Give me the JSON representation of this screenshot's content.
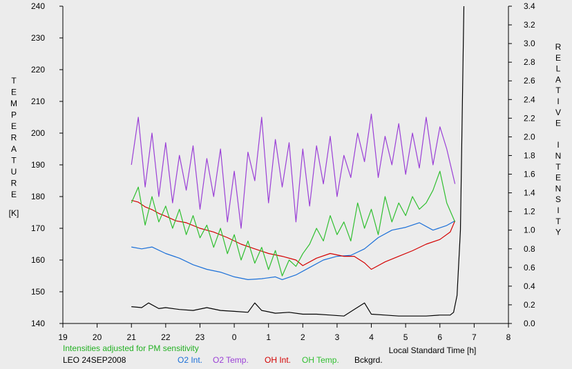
{
  "colors": {
    "background": "#ececec",
    "axis": "#000000",
    "o2_int": "#1a6fd8",
    "o2_temp": "#9a3fd6",
    "oh_int": "#d40000",
    "oh_temp": "#2fbf2f",
    "bckgrd": "#000000",
    "note": "#22b022"
  },
  "chart_data": {
    "type": "line",
    "title": "",
    "xlabel": "Local Standard Time [h]",
    "ylabel_left": "TEMPERATURE",
    "ylabel_left_unit": "[K]",
    "ylabel_right": "RELATIVE INTENSITY",
    "xlim": [
      19,
      32
    ],
    "x_ticks": [
      "19",
      "20",
      "21",
      "22",
      "23",
      "0",
      "1",
      "2",
      "3",
      "4",
      "5",
      "6",
      "7",
      "8"
    ],
    "ylim_left": [
      140,
      240
    ],
    "y_left_ticks": [
      "140",
      "150",
      "160",
      "170",
      "180",
      "190",
      "200",
      "210",
      "220",
      "230",
      "240"
    ],
    "ylim_right": [
      0.0,
      3.4
    ],
    "y_right_ticks": [
      "0.0",
      "0.2",
      "0.4",
      "0.6",
      "0.8",
      "1.0",
      "1.2",
      "1.4",
      "1.6",
      "1.8",
      "2.0",
      "2.2",
      "2.4",
      "2.6",
      "2.8",
      "3.0",
      "3.2",
      "3.4"
    ],
    "note": "Intensities adjusted for PM sensitivity",
    "station": "LEO 24SEP2008",
    "grid": false,
    "legend_position": "bottom",
    "series": [
      {
        "name": "O2 Int.",
        "axis": "right",
        "color": "#1a6fd8",
        "x": [
          21.0,
          21.3,
          21.6,
          22.0,
          22.4,
          22.8,
          23.2,
          23.6,
          24.0,
          24.4,
          24.8,
          25.2,
          25.4,
          25.8,
          26.2,
          26.6,
          27.0,
          27.4,
          27.8,
          28.2,
          28.6,
          29.0,
          29.4,
          29.8,
          30.2,
          30.44
        ],
        "y": [
          0.82,
          0.8,
          0.82,
          0.75,
          0.7,
          0.63,
          0.58,
          0.55,
          0.5,
          0.47,
          0.48,
          0.5,
          0.47,
          0.52,
          0.6,
          0.68,
          0.72,
          0.73,
          0.8,
          0.92,
          1.0,
          1.03,
          1.08,
          1.0,
          1.05,
          1.1
        ]
      },
      {
        "name": "O2 Temp.",
        "axis": "left",
        "color": "#9a3fd6",
        "x": [
          21.0,
          21.2,
          21.4,
          21.6,
          21.8,
          22.0,
          22.2,
          22.4,
          22.6,
          22.8,
          23.0,
          23.2,
          23.4,
          23.6,
          23.8,
          24.0,
          24.2,
          24.4,
          24.6,
          24.8,
          25.0,
          25.2,
          25.4,
          25.6,
          25.8,
          26.0,
          26.2,
          26.4,
          26.6,
          26.8,
          27.0,
          27.2,
          27.4,
          27.6,
          27.8,
          28.0,
          28.2,
          28.4,
          28.6,
          28.8,
          29.0,
          29.2,
          29.4,
          29.6,
          29.8,
          30.0,
          30.2,
          30.44
        ],
        "y": [
          190,
          205,
          183,
          200,
          180,
          197,
          178,
          193,
          182,
          196,
          176,
          192,
          180,
          195,
          172,
          188,
          170,
          194,
          185,
          205,
          178,
          198,
          183,
          197,
          172,
          195,
          177,
          196,
          184,
          199,
          180,
          193,
          186,
          200,
          191,
          206,
          186,
          199,
          190,
          203,
          187,
          200,
          189,
          205,
          190,
          202,
          195,
          184
        ]
      },
      {
        "name": "OH Int.",
        "axis": "right",
        "color": "#d40000",
        "x": [
          21.0,
          21.2,
          21.4,
          21.6,
          21.8,
          22.0,
          22.3,
          22.6,
          23.0,
          23.4,
          23.8,
          24.2,
          24.6,
          25.0,
          25.4,
          25.8,
          26.0,
          26.4,
          26.8,
          27.2,
          27.5,
          27.8,
          28.0,
          28.4,
          28.8,
          29.2,
          29.6,
          30.0,
          30.3,
          30.44
        ],
        "y": [
          1.32,
          1.3,
          1.25,
          1.22,
          1.18,
          1.15,
          1.1,
          1.08,
          1.02,
          0.98,
          0.92,
          0.85,
          0.8,
          0.75,
          0.72,
          0.68,
          0.62,
          0.7,
          0.75,
          0.72,
          0.72,
          0.65,
          0.58,
          0.66,
          0.72,
          0.78,
          0.85,
          0.9,
          0.98,
          1.1
        ]
      },
      {
        "name": "OH Temp.",
        "axis": "left",
        "color": "#2fbf2f",
        "x": [
          21.0,
          21.2,
          21.4,
          21.6,
          21.8,
          22.0,
          22.2,
          22.4,
          22.6,
          22.8,
          23.0,
          23.2,
          23.4,
          23.6,
          23.8,
          24.0,
          24.2,
          24.4,
          24.6,
          24.8,
          25.0,
          25.2,
          25.4,
          25.6,
          25.8,
          26.0,
          26.2,
          26.4,
          26.6,
          26.8,
          27.0,
          27.2,
          27.4,
          27.6,
          27.8,
          28.0,
          28.2,
          28.4,
          28.6,
          28.8,
          29.0,
          29.2,
          29.4,
          29.6,
          29.8,
          30.0,
          30.2,
          30.44
        ],
        "y": [
          178,
          183,
          171,
          180,
          172,
          177,
          170,
          176,
          168,
          174,
          167,
          171,
          164,
          170,
          162,
          168,
          160,
          166,
          159,
          164,
          157,
          163,
          155,
          160,
          158,
          162,
          165,
          170,
          166,
          174,
          168,
          172,
          166,
          178,
          170,
          176,
          168,
          180,
          172,
          178,
          174,
          180,
          176,
          178,
          182,
          188,
          178,
          172
        ]
      },
      {
        "name": "Bckgrd.",
        "axis": "right",
        "color": "#000000",
        "x": [
          21.0,
          21.3,
          21.5,
          21.8,
          22.0,
          22.4,
          22.8,
          23.2,
          23.6,
          24.0,
          24.4,
          24.6,
          24.8,
          25.2,
          25.6,
          26.0,
          26.4,
          26.8,
          27.2,
          27.8,
          27.9,
          28.0,
          28.4,
          28.8,
          29.2,
          29.6,
          30.0,
          30.3,
          30.4,
          30.5,
          30.6,
          30.7
        ],
        "y": [
          0.18,
          0.17,
          0.22,
          0.16,
          0.17,
          0.15,
          0.14,
          0.17,
          0.14,
          0.13,
          0.12,
          0.22,
          0.14,
          0.11,
          0.12,
          0.1,
          0.1,
          0.09,
          0.08,
          0.22,
          0.16,
          0.1,
          0.09,
          0.08,
          0.08,
          0.08,
          0.09,
          0.09,
          0.12,
          0.3,
          1.0,
          3.4
        ]
      }
    ]
  }
}
